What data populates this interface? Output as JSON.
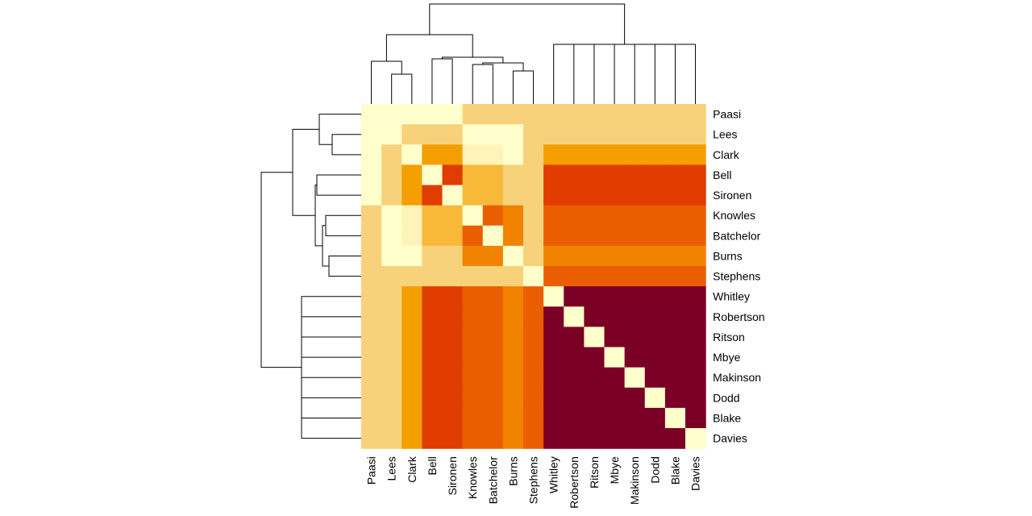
{
  "chart_data": {
    "type": "heatmap",
    "title": "",
    "xlabel": "",
    "ylabel": "",
    "legend": "none",
    "row_labels": [
      "Paasi",
      "Lees",
      "Clark",
      "Bell",
      "Sironen",
      "Knowles",
      "Batchelor",
      "Burns",
      "Stephens",
      "Whitley",
      "Robertson",
      "Ritson",
      "Mbye",
      "Makinson",
      "Dodd",
      "Blake",
      "Davies"
    ],
    "col_labels": [
      "Paasi",
      "Lees",
      "Clark",
      "Bell",
      "Sironen",
      "Knowles",
      "Batchelor",
      "Burns",
      "Stephens",
      "Whitley",
      "Robertson",
      "Ritson",
      "Mbye",
      "Makinson",
      "Dodd",
      "Blake",
      "Davies"
    ],
    "palette": [
      "#FFFFCC",
      "#FFF3BA",
      "#F7D27A",
      "#F8B93A",
      "#F59E00",
      "#F18300",
      "#EB5E00",
      "#E03C00",
      "#7A0025"
    ],
    "values": [
      [
        0,
        0,
        0,
        0,
        0,
        2,
        2,
        2,
        2,
        2,
        2,
        2,
        2,
        2,
        2,
        2,
        2
      ],
      [
        0,
        0,
        2,
        2,
        2,
        0,
        0,
        0,
        2,
        2,
        2,
        2,
        2,
        2,
        2,
        2,
        2
      ],
      [
        0,
        2,
        0,
        4,
        4,
        1,
        1,
        0,
        2,
        4,
        4,
        4,
        4,
        4,
        4,
        4,
        4
      ],
      [
        0,
        2,
        4,
        0,
        7,
        3,
        3,
        2,
        2,
        7,
        7,
        7,
        7,
        7,
        7,
        7,
        7
      ],
      [
        0,
        2,
        4,
        7,
        0,
        3,
        3,
        2,
        2,
        7,
        7,
        7,
        7,
        7,
        7,
        7,
        7
      ],
      [
        2,
        0,
        1,
        3,
        3,
        0,
        6,
        5,
        2,
        6,
        6,
        6,
        6,
        6,
        6,
        6,
        6
      ],
      [
        2,
        0,
        1,
        3,
        3,
        6,
        0,
        5,
        2,
        6,
        6,
        6,
        6,
        6,
        6,
        6,
        6
      ],
      [
        2,
        0,
        0,
        2,
        2,
        5,
        5,
        0,
        2,
        5,
        5,
        5,
        5,
        5,
        5,
        5,
        5
      ],
      [
        2,
        2,
        2,
        2,
        2,
        2,
        2,
        2,
        0,
        6,
        6,
        6,
        6,
        6,
        6,
        6,
        6
      ],
      [
        2,
        2,
        4,
        7,
        7,
        6,
        6,
        5,
        6,
        0,
        8,
        8,
        8,
        8,
        8,
        8,
        8
      ],
      [
        2,
        2,
        4,
        7,
        7,
        6,
        6,
        5,
        6,
        8,
        0,
        8,
        8,
        8,
        8,
        8,
        8
      ],
      [
        2,
        2,
        4,
        7,
        7,
        6,
        6,
        5,
        6,
        8,
        8,
        0,
        8,
        8,
        8,
        8,
        8
      ],
      [
        2,
        2,
        4,
        7,
        7,
        6,
        6,
        5,
        6,
        8,
        8,
        8,
        0,
        8,
        8,
        8,
        8
      ],
      [
        2,
        2,
        4,
        7,
        7,
        6,
        6,
        5,
        6,
        8,
        8,
        8,
        8,
        0,
        8,
        8,
        8
      ],
      [
        2,
        2,
        4,
        7,
        7,
        6,
        6,
        5,
        6,
        8,
        8,
        8,
        8,
        8,
        0,
        8,
        8
      ],
      [
        2,
        2,
        4,
        7,
        7,
        6,
        6,
        5,
        6,
        8,
        8,
        8,
        8,
        8,
        8,
        0,
        8
      ],
      [
        2,
        2,
        4,
        7,
        7,
        6,
        6,
        5,
        6,
        8,
        8,
        8,
        8,
        8,
        8,
        8,
        0
      ]
    ],
    "dendrogram": {
      "col_merges": [
        [
          0,
          1,
          0.57
        ],
        [
          3,
          4,
          0.43
        ],
        [
          5,
          6,
          0.21
        ],
        [
          7,
          8,
          0.18
        ],
        [
          -3,
          -4,
          0.31
        ],
        [
          -2,
          -5,
          0.35
        ],
        [
          2,
          -6,
          0.43
        ],
        [
          -1,
          -7,
          0.67
        ],
        [
          9,
          10,
          0.0
        ],
        [
          11,
          -9,
          0.0
        ],
        [
          12,
          -10,
          0.0
        ],
        [
          13,
          -11,
          0.0
        ],
        [
          14,
          -12,
          0.0
        ],
        [
          15,
          -13,
          0.0
        ],
        [
          16,
          -14,
          0.0
        ],
        [
          -8,
          -15,
          0.0
        ]
      ]
    }
  }
}
